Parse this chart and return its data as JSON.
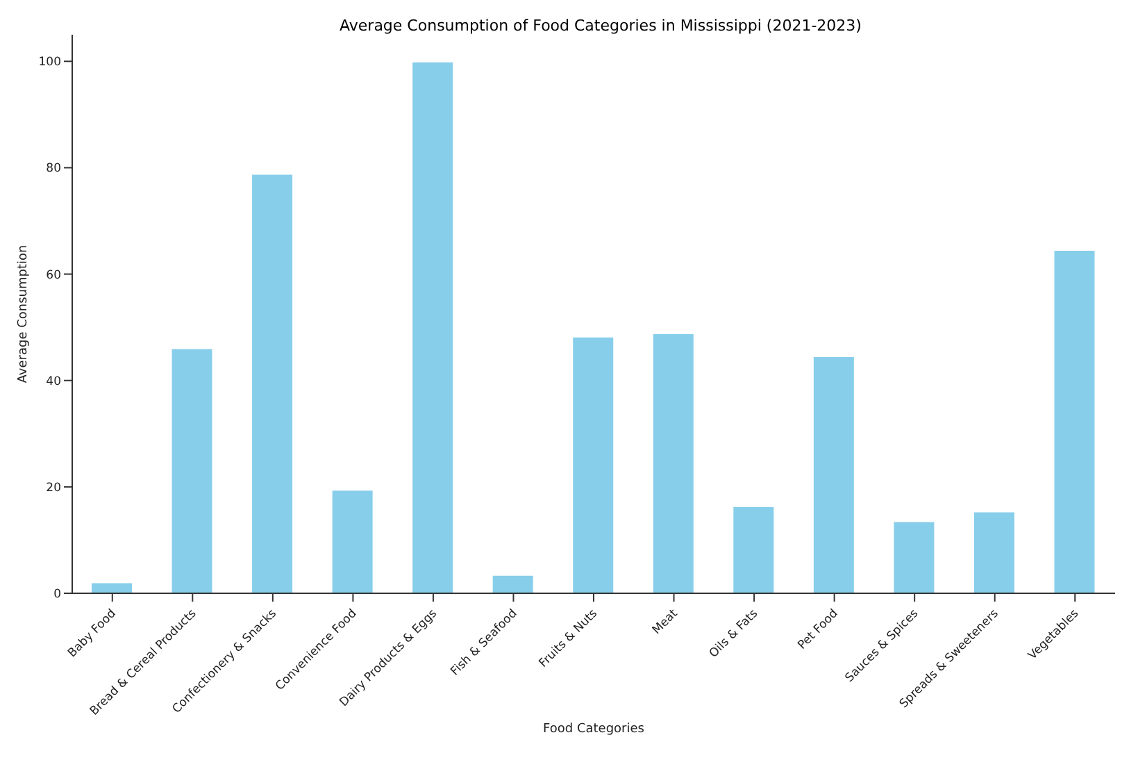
{
  "chart_data": {
    "type": "bar",
    "title": "Average Consumption of Food Categories in Mississippi (2021-2023)",
    "xlabel": "Food Categories",
    "ylabel": "Average Consumption",
    "categories": [
      "Baby Food",
      "Bread & Cereal Products",
      "Confectionery & Snacks",
      "Convenience Food",
      "Dairy Products & Eggs",
      "Fish & Seafood",
      "Fruits & Nuts",
      "Meat",
      "Oils & Fats",
      "Pet Food",
      "Sauces & Spices",
      "Spreads & Sweeteners",
      "Vegetables"
    ],
    "values": [
      1.9,
      45.9,
      78.7,
      19.3,
      99.8,
      3.3,
      48.1,
      48.7,
      16.2,
      44.4,
      13.4,
      15.2,
      64.4
    ],
    "color": "#87ceeb",
    "ylim": [
      0,
      105
    ],
    "yticks": [
      0,
      20,
      40,
      60,
      80,
      100
    ],
    "grid": false,
    "legend": false
  }
}
